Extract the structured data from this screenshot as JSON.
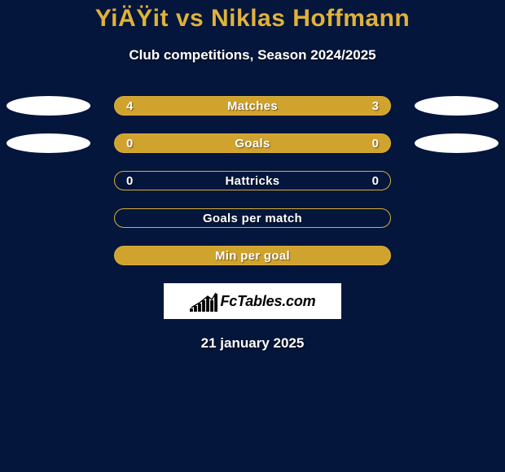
{
  "background_color": "#04163b",
  "text_color": "#ffffff",
  "title": "YiÄŸit vs Niklas Hoffmann",
  "title_color": "#e0b23a",
  "subtitle": "Club competitions, Season 2024/2025",
  "date": "21 january 2025",
  "rows": [
    {
      "label": "Matches",
      "left_value": "4",
      "right_value": "3",
      "fill_color": "#d0a22e",
      "border_color": "#d9af3a",
      "left_pill_color": "#ffffff",
      "right_pill_color": "#ffffff",
      "show_values": true,
      "show_pills": true
    },
    {
      "label": "Goals",
      "left_value": "0",
      "right_value": "0",
      "fill_color": "#d0a22e",
      "border_color": "#d9af3a",
      "left_pill_color": "#ffffff",
      "right_pill_color": "#ffffff",
      "show_values": true,
      "show_pills": true
    },
    {
      "label": "Hattricks",
      "left_value": "0",
      "right_value": "0",
      "fill_color": "#04163b",
      "border_color": "#d9af3a",
      "left_pill_color": "",
      "right_pill_color": "",
      "show_values": true,
      "show_pills": false
    },
    {
      "label": "Goals per match",
      "left_value": "",
      "right_value": "",
      "fill_color": "#04163b",
      "border_color": "#d9af3a",
      "left_pill_color": "",
      "right_pill_color": "",
      "show_values": false,
      "show_pills": false
    },
    {
      "label": "Min per goal",
      "left_value": "",
      "right_value": "",
      "fill_color": "#d0a22e",
      "border_color": "#d9af3a",
      "left_pill_color": "",
      "right_pill_color": "",
      "show_values": false,
      "show_pills": false
    }
  ],
  "logo": {
    "text": "FcTables.com",
    "box_bg": "#ffffff",
    "bars": [
      4,
      7,
      10,
      14,
      18,
      14,
      22
    ]
  }
}
